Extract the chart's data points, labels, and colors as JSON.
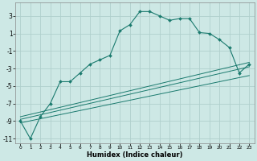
{
  "title": "",
  "xlabel": "Humidex (Indice chaleur)",
  "background_color": "#cde8e5",
  "grid_color": "#b0d0cc",
  "line_color": "#1a7a6e",
  "xlim": [
    -0.5,
    23.5
  ],
  "ylim": [
    -11.5,
    4.5
  ],
  "yticks": [
    3,
    1,
    -1,
    -3,
    -5,
    -7,
    -9,
    -11
  ],
  "xticks": [
    0,
    1,
    2,
    3,
    4,
    5,
    6,
    7,
    8,
    9,
    10,
    11,
    12,
    13,
    14,
    15,
    16,
    17,
    18,
    19,
    20,
    21,
    22,
    23
  ],
  "series1": {
    "x": [
      0,
      1,
      2,
      3,
      4,
      5,
      6,
      7,
      8,
      9,
      10,
      11,
      12,
      13,
      14,
      15,
      16,
      17,
      18,
      19,
      20,
      21,
      22,
      23
    ],
    "y": [
      -9.0,
      -11.0,
      -8.5,
      -7.0,
      -4.5,
      -4.5,
      -3.5,
      -2.5,
      -2.0,
      -1.5,
      1.3,
      2.0,
      3.5,
      3.5,
      3.0,
      2.5,
      2.7,
      2.7,
      1.1,
      1.0,
      0.3,
      -0.6,
      -3.5,
      -2.5
    ]
  },
  "series3_line": {
    "x": [
      0,
      23
    ],
    "y": [
      -8.5,
      -2.3
    ]
  },
  "series4_line": {
    "x": [
      0,
      23
    ],
    "y": [
      -8.8,
      -2.8
    ]
  },
  "series5_line": {
    "x": [
      0,
      23
    ],
    "y": [
      -9.2,
      -3.8
    ]
  }
}
